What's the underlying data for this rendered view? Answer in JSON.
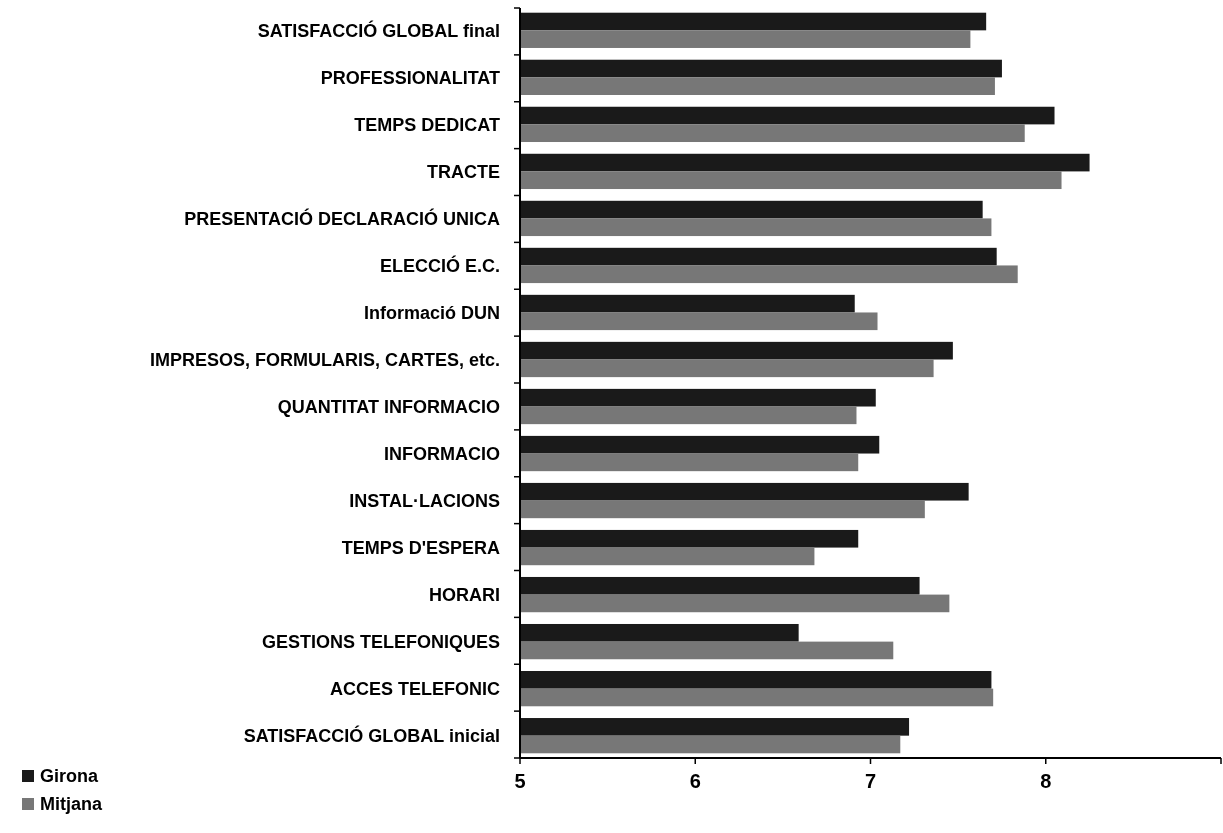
{
  "chart_data": {
    "type": "bar",
    "orientation": "horizontal",
    "categories": [
      "SATISFACCIÓ GLOBAL final",
      "PROFESSIONALITAT",
      "TEMPS DEDICAT",
      "TRACTE",
      "PRESENTACIÓ DECLARACIÓ UNICA",
      "ELECCIÓ E.C.",
      "Informació DUN",
      "IMPRESOS, FORMULARIS, CARTES, etc.",
      "QUANTITAT INFORMACIO",
      "INFORMACIO",
      "INSTAL·LACIONS",
      "TEMPS D'ESPERA",
      "HORARI",
      "GESTIONS TELEFONIQUES",
      "ACCES TELEFONIC",
      "SATISFACCIÓ GLOBAL inicial"
    ],
    "series": [
      {
        "name": "Girona",
        "color": "#1a1a1a",
        "values": [
          7.66,
          7.75,
          8.05,
          8.25,
          7.64,
          7.72,
          6.91,
          7.47,
          7.03,
          7.05,
          7.56,
          6.93,
          7.28,
          6.59,
          7.69,
          7.22
        ]
      },
      {
        "name": "Mitjana",
        "color": "#777777",
        "values": [
          7.57,
          7.71,
          7.88,
          8.09,
          7.69,
          7.84,
          7.04,
          7.36,
          6.92,
          6.93,
          7.31,
          6.68,
          7.45,
          7.13,
          7.7,
          7.17
        ]
      }
    ],
    "xlim": [
      5,
      9
    ],
    "xticks": [
      5,
      6,
      7,
      8,
      {
        "value": 9,
        "label": null
      }
    ],
    "grid": false,
    "legend": "bottom left"
  }
}
